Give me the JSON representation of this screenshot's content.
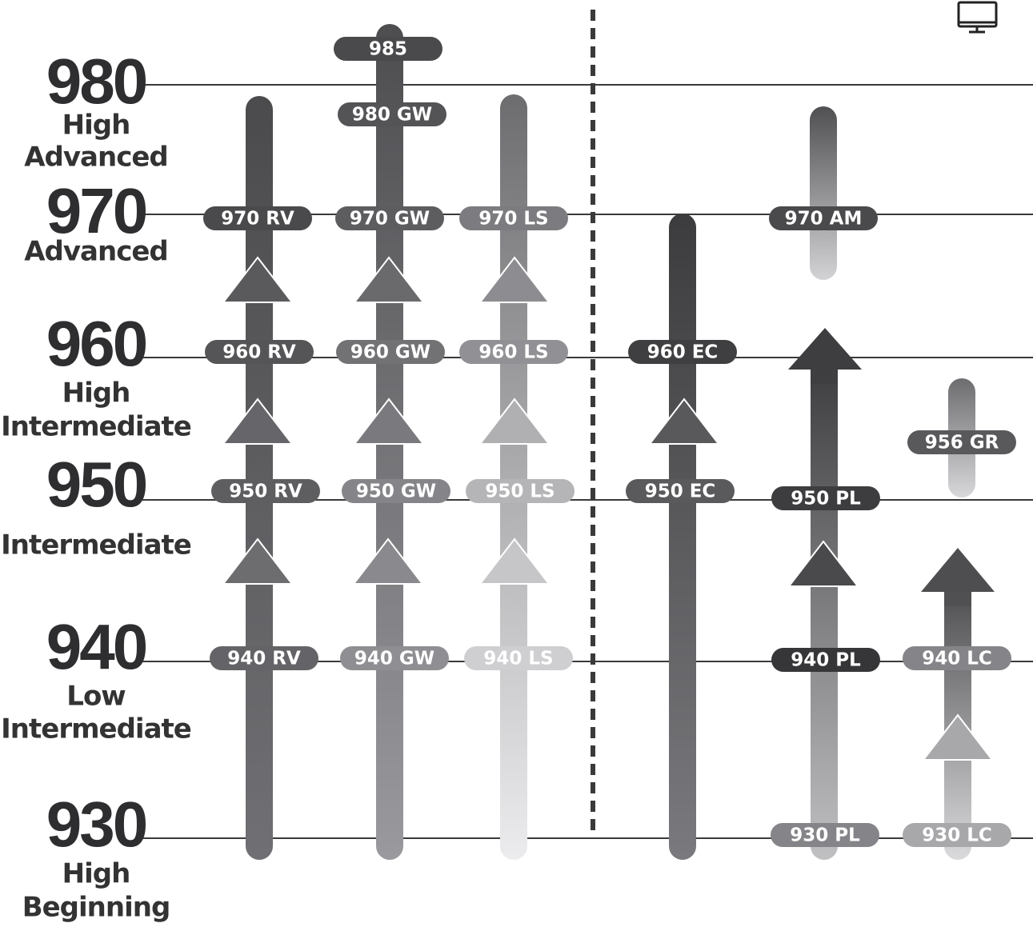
{
  "levels": [
    {
      "number": "980",
      "name_lines": [
        "High",
        "Advanced"
      ]
    },
    {
      "number": "970",
      "name_lines": [
        "Advanced"
      ]
    },
    {
      "number": "960",
      "name_lines": [
        "High",
        "Intermediate"
      ]
    },
    {
      "number": "950",
      "name_lines": [
        "Intermediate"
      ]
    },
    {
      "number": "940",
      "name_lines": [
        "Low",
        "Intermediate"
      ]
    },
    {
      "number": "930",
      "name_lines": [
        "High",
        "Beginning"
      ]
    }
  ],
  "courses": [
    {
      "labels": [
        "970 RV",
        "960 RV",
        "950 RV",
        "940 RV"
      ]
    },
    {
      "labels": [
        "985",
        "980 GW",
        "970 GW",
        "960 GW",
        "950 GW",
        "940 GW"
      ]
    },
    {
      "labels": [
        "970 LS",
        "960 LS",
        "950 LS",
        "940 LS"
      ]
    },
    {
      "labels": [
        "960 EC",
        "950 EC"
      ]
    },
    {
      "labels": [
        "970 AM"
      ]
    },
    {
      "labels": [
        "950 PL",
        "940 PL",
        "930 PL"
      ]
    },
    {
      "labels": [
        "956 GR"
      ]
    },
    {
      "labels": [
        "940 LC",
        "930 LC"
      ]
    }
  ]
}
